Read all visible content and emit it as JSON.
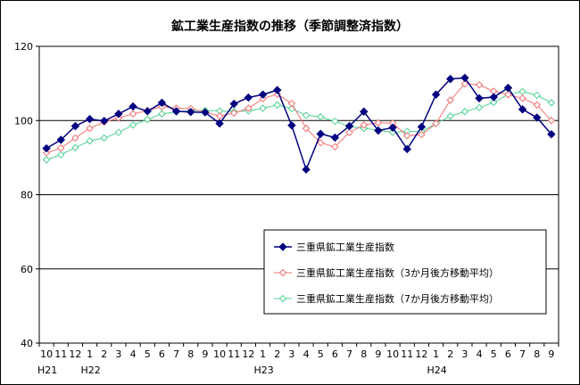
{
  "chart_data": {
    "type": "line",
    "title": "鉱工業生産指数の推移（季節調整済指数）",
    "ylim": [
      40,
      120
    ],
    "yticks": [
      40,
      60,
      80,
      100,
      120
    ],
    "grid": true,
    "legend_position": "right-center",
    "categories": [
      "10",
      "11",
      "12",
      "1",
      "2",
      "3",
      "4",
      "5",
      "6",
      "7",
      "8",
      "9",
      "10",
      "11",
      "12",
      "1",
      "2",
      "3",
      "4",
      "5",
      "6",
      "7",
      "8",
      "9",
      "10",
      "11",
      "12",
      "1",
      "2",
      "3",
      "4",
      "5",
      "6",
      "7",
      "8",
      "9"
    ],
    "year_labels": [
      {
        "index": 0,
        "label": "H21"
      },
      {
        "index": 3,
        "label": "H22"
      },
      {
        "index": 15,
        "label": "H23"
      },
      {
        "index": 27,
        "label": "H24"
      }
    ],
    "series": [
      {
        "name": "三重県鉱工業生産指数",
        "color": "#000080",
        "marker": "filled-diamond",
        "values": [
          92.5,
          94.8,
          98.5,
          100.4,
          99.9,
          101.8,
          103.8,
          102.5,
          104.8,
          102.5,
          102.3,
          102.2,
          99.2,
          104.5,
          106.2,
          107.0,
          108.2,
          98.7,
          86.8,
          96.4,
          95.4,
          98.5,
          102.4,
          97.3,
          98.1,
          92.3,
          98.3,
          107.0,
          111.2,
          111.5,
          106.0,
          106.3,
          108.8,
          103.0,
          100.8,
          96.3
        ]
      },
      {
        "name": "三重県鉱工業生産指数（3か月後方移動平均）",
        "color": "#f07070",
        "marker": "open-diamond",
        "values": [
          91.3,
          92.6,
          95.3,
          97.9,
          99.6,
          100.7,
          101.8,
          102.7,
          103.7,
          103.3,
          103.2,
          102.3,
          101.2,
          102.0,
          103.3,
          105.9,
          107.1,
          104.6,
          97.9,
          94.0,
          92.9,
          96.8,
          98.8,
          99.4,
          99.3,
          95.9,
          96.2,
          99.2,
          105.5,
          109.9,
          109.6,
          107.9,
          107.0,
          106.0,
          104.2,
          100.0
        ]
      },
      {
        "name": "三重県鉱工業生産指数（7か月後方移動平均）",
        "color": "#50d090",
        "marker": "open-diamond",
        "values": [
          89.4,
          90.8,
          92.7,
          94.5,
          95.3,
          96.8,
          98.8,
          100.3,
          101.8,
          102.3,
          102.7,
          102.7,
          102.6,
          102.4,
          102.6,
          103.3,
          104.2,
          103.2,
          101.4,
          101.0,
          99.8,
          98.4,
          97.9,
          97.4,
          96.8,
          97.1,
          97.0,
          99.2,
          101.2,
          102.4,
          103.5,
          104.9,
          107.0,
          107.8,
          106.8,
          104.8
        ]
      }
    ]
  }
}
